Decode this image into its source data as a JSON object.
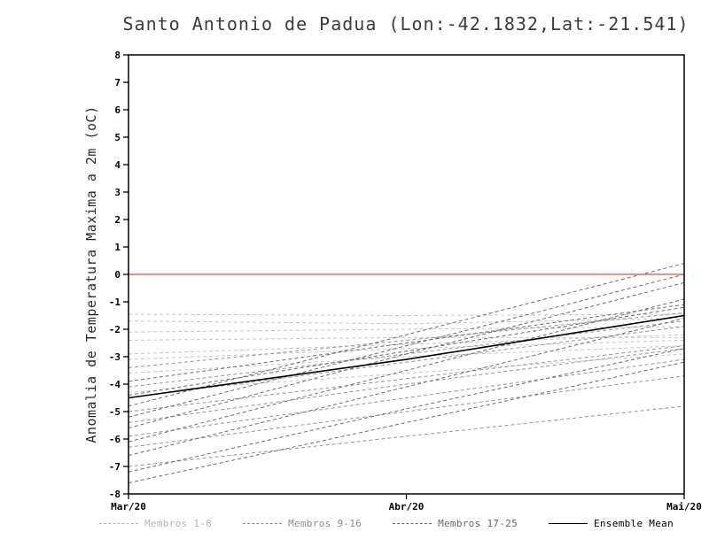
{
  "chart_data": {
    "type": "line",
    "title": "Santo Antonio de Padua (Lon:-42.1832,Lat:-21.541)",
    "ylabel": "Anomalia de Temperatura Maxima a 2m (oC)",
    "xlabel": "",
    "ylim": [
      -8,
      8
    ],
    "y_ticks": [
      -8,
      -7,
      -6,
      -5,
      -4,
      -3,
      -2,
      -1,
      0,
      1,
      2,
      3,
      4,
      5,
      6,
      7,
      8
    ],
    "x_ticks": [
      "Mar/20",
      "Abr/20",
      "Mai/20"
    ],
    "grid": false,
    "zero_line": {
      "value": 0,
      "color": "#e84a4a"
    },
    "frame_color": "#000000",
    "groups": [
      {
        "name": "Membros 1-8",
        "color": "#c6c6c6",
        "style": "dashed",
        "members": [
          [
            -1.45,
            -1.5,
            -1.45
          ],
          [
            -1.7,
            -1.8,
            -1.6
          ],
          [
            -2.1,
            -2.0,
            -1.9
          ],
          [
            -2.4,
            -2.3,
            -2.3
          ],
          [
            -3.1,
            -2.7,
            -2.4
          ],
          [
            -3.6,
            -3.0,
            -2.6
          ],
          [
            -4.3,
            -3.6,
            -2.9
          ],
          [
            -2.9,
            -2.55,
            -2.2
          ]
        ]
      },
      {
        "name": "Membros 9-16",
        "color": "#959595",
        "style": "dashed",
        "members": [
          [
            -4.5,
            -3.2,
            -1.9
          ],
          [
            -5.0,
            -3.8,
            -2.6
          ],
          [
            -5.4,
            -4.0,
            -2.7
          ],
          [
            -5.9,
            -4.5,
            -3.1
          ],
          [
            -6.3,
            -5.0,
            -3.7
          ],
          [
            -4.1,
            -2.9,
            -1.7
          ],
          [
            -3.4,
            -2.4,
            -1.4
          ],
          [
            -7.0,
            -5.9,
            -4.8
          ]
        ]
      },
      {
        "name": "Membros 17-25",
        "color": "#6c6c6c",
        "style": "dashed",
        "members": [
          [
            -7.6,
            -5.4,
            -3.2
          ],
          [
            -7.2,
            -4.9,
            -2.7
          ],
          [
            -6.6,
            -4.1,
            -1.6
          ],
          [
            -6.1,
            -3.5,
            -0.9
          ],
          [
            -5.6,
            -2.9,
            -0.3
          ],
          [
            -5.2,
            -2.6,
            0.0
          ],
          [
            -4.8,
            -2.2,
            0.4
          ],
          [
            -4.4,
            -2.8,
            -1.2
          ],
          [
            -3.9,
            -2.5,
            -1.1
          ]
        ]
      }
    ],
    "ensemble_mean": {
      "name": "Ensemble Mean",
      "color": "#000000",
      "style": "solid",
      "values": [
        -4.5,
        -3.1,
        -1.5
      ]
    },
    "legend": [
      {
        "label": "Membros 1-8",
        "color": "#b5b5b5",
        "style": "dashed"
      },
      {
        "label": "Membros 9-16",
        "color": "#8d8d8d",
        "style": "dashed"
      },
      {
        "label": "Membros 17-25",
        "color": "#676767",
        "style": "dashed"
      },
      {
        "label": "Ensemble Mean",
        "color": "#000000",
        "style": "solid"
      }
    ]
  }
}
